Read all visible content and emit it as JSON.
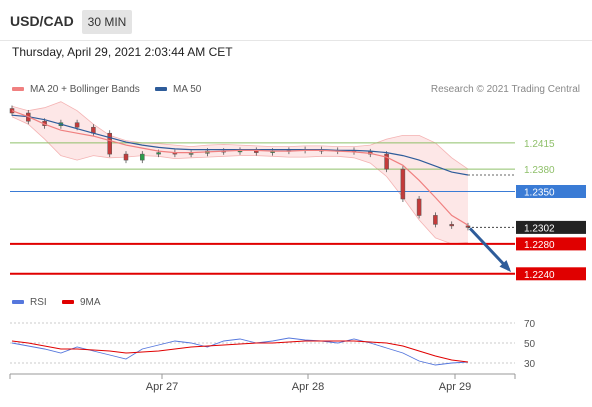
{
  "header": {
    "pair": "USD/CAD",
    "timeframe": "30 MIN"
  },
  "datetime": "Thursday, April 29, 2021 2:03:44 AM CET",
  "legend": {
    "ma20_label": "MA 20 + Bollinger Bands",
    "ma50_label": "MA 50",
    "credit": "Research © 2021 Trading Central",
    "rsi_label": "RSI",
    "ma9_label": "9MA"
  },
  "colors": {
    "ma20": "#f08080",
    "ma50": "#2e5c9a",
    "green": "#8fc06a",
    "blue": "#3a7bd5",
    "red": "#e00000",
    "current": "#222222",
    "rsi": "#5577dd",
    "ma9": "#e00000"
  },
  "chart_data": [
    {
      "type": "candlestick",
      "price_ylim": [
        1.2225,
        1.2475
      ],
      "levels": [
        {
          "value": 1.2415,
          "label": "1.2415",
          "kind": "resistance"
        },
        {
          "value": 1.238,
          "label": "1.2380",
          "kind": "resistance"
        },
        {
          "value": 1.235,
          "label": "1.2350",
          "kind": "pivot"
        },
        {
          "value": 1.228,
          "label": "1.2280",
          "kind": "support"
        },
        {
          "value": 1.224,
          "label": "1.2240",
          "kind": "support"
        }
      ],
      "current_price": {
        "value": 1.2302,
        "label": "1.2302"
      },
      "x_ticks": [
        "Apr 27",
        "Apr 28",
        "Apr 29"
      ],
      "ma20": [
        1.2458,
        1.245,
        1.244,
        1.2432,
        1.2428,
        1.2424,
        1.2418,
        1.2412,
        1.2408,
        1.2404,
        1.2402,
        1.2402,
        1.2403,
        1.2404,
        1.2405,
        1.2405,
        1.2404,
        1.2404,
        1.2405,
        1.2405,
        1.2404,
        1.2403,
        1.2401,
        1.2396,
        1.2385,
        1.2365,
        1.2342,
        1.2318,
        1.2305
      ],
      "ma20_upper": [
        1.2464,
        1.2458,
        1.2462,
        1.247,
        1.2458,
        1.244,
        1.2425,
        1.2418,
        1.2415,
        1.2414,
        1.2412,
        1.241,
        1.2412,
        1.2413,
        1.2412,
        1.2411,
        1.241,
        1.241,
        1.2411,
        1.2411,
        1.241,
        1.241,
        1.2412,
        1.242,
        1.2425,
        1.2425,
        1.2415,
        1.2395,
        1.238
      ],
      "ma20_lower": [
        1.245,
        1.244,
        1.242,
        1.2398,
        1.2392,
        1.2398,
        1.2395,
        1.2396,
        1.2398,
        1.2397,
        1.2394,
        1.2395,
        1.2396,
        1.2397,
        1.2398,
        1.2398,
        1.2397,
        1.2396,
        1.2396,
        1.2397,
        1.2397,
        1.2395,
        1.2388,
        1.237,
        1.2342,
        1.2312,
        1.2288,
        1.228,
        1.2282
      ],
      "ma50": [
        1.2452,
        1.245,
        1.2446,
        1.244,
        1.2434,
        1.2428,
        1.2422,
        1.2416,
        1.2412,
        1.2409,
        1.2407,
        1.2406,
        1.2406,
        1.2406,
        1.2406,
        1.2406,
        1.2406,
        1.2406,
        1.2406,
        1.2406,
        1.2405,
        1.2405,
        1.2404,
        1.2402,
        1.2398,
        1.2392,
        1.2384,
        1.2376,
        1.2372
      ],
      "close": [
        1.2455,
        1.2444,
        1.2438,
        1.2442,
        1.2436,
        1.2428,
        1.24,
        1.2392,
        1.24,
        1.2402,
        1.24,
        1.2401,
        1.2404,
        1.2403,
        1.2405,
        1.2402,
        1.2404,
        1.2405,
        1.2406,
        1.2404,
        1.2405,
        1.2403,
        1.24,
        1.238,
        1.234,
        1.2318,
        1.2306,
        1.2304,
        1.2302
      ]
    },
    {
      "type": "line",
      "name": "RSI",
      "ylim": [
        20,
        80
      ],
      "y_ticks": [
        70,
        50,
        30
      ],
      "rsi": [
        50,
        47,
        44,
        40,
        46,
        42,
        38,
        34,
        44,
        48,
        52,
        50,
        46,
        52,
        54,
        50,
        52,
        55,
        53,
        52,
        50,
        54,
        50,
        45,
        40,
        32,
        28,
        30,
        31
      ],
      "ma9": [
        52,
        50,
        47,
        44,
        44,
        43,
        42,
        40,
        41,
        42,
        44,
        46,
        47,
        48,
        49,
        50,
        50,
        51,
        52,
        52,
        52,
        52,
        51,
        50,
        47,
        42,
        37,
        33,
        31
      ]
    }
  ]
}
